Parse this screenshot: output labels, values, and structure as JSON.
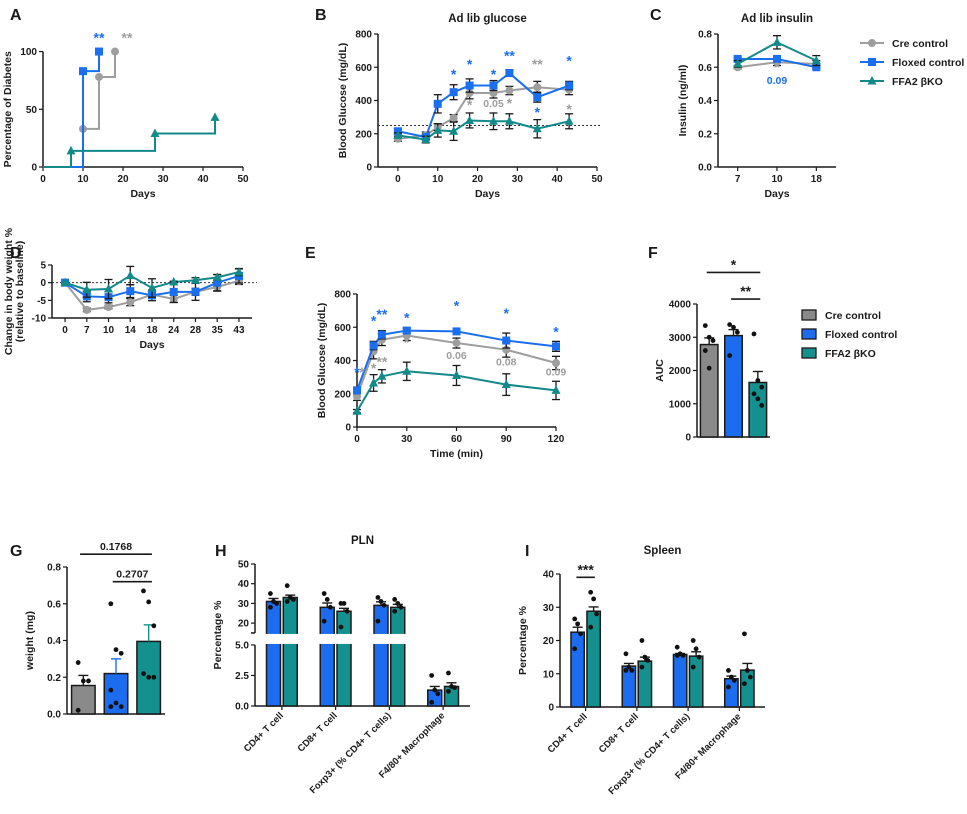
{
  "colors": {
    "cre": "#9e9e9e",
    "floxed": "#1a6ff0",
    "ko": "#138a8a",
    "black": "#1a1a1a",
    "bar_cre": "#8a8a8a",
    "bar_floxed": "#1c6cf0",
    "bar_ko": "#14918e"
  },
  "legend_lines": [
    {
      "label": "Cre control",
      "key": "cre",
      "marker": "circle"
    },
    {
      "label": "Floxed control",
      "key": "floxed",
      "marker": "square"
    },
    {
      "label": "FFA2 βKO",
      "key": "ko",
      "marker": "triangle"
    }
  ],
  "legend_bars": [
    {
      "label": "Cre control",
      "key": "bar_cre"
    },
    {
      "label": "Floxed control",
      "key": "bar_floxed"
    },
    {
      "label": "FFA2 βKO",
      "key": "bar_ko"
    }
  ],
  "chart_data": [
    {
      "panel": "A",
      "type": "line",
      "step": true,
      "title": "",
      "xlabel": "Days",
      "ylabel": "Percentage of Diabetes",
      "xlim": [
        0,
        50
      ],
      "ylim": [
        0,
        110
      ],
      "xticks": [
        0,
        10,
        20,
        30,
        40,
        50
      ],
      "yticks": [
        0,
        50,
        100
      ],
      "series": [
        {
          "name": "Cre control",
          "key": "cre",
          "marker": "circle",
          "x": [
            0,
            10,
            14,
            18
          ],
          "y": [
            0,
            33,
            78,
            100
          ]
        },
        {
          "name": "Floxed control",
          "key": "floxed",
          "marker": "square",
          "x": [
            0,
            10,
            14
          ],
          "y": [
            0,
            83,
            100
          ]
        },
        {
          "name": "FFA2 βKO",
          "key": "ko",
          "marker": "triangle",
          "x": [
            0,
            7,
            28,
            43
          ],
          "y": [
            0,
            14,
            29,
            43
          ]
        }
      ],
      "annotations": [
        {
          "text": "**",
          "key": "floxed",
          "x": 14,
          "y": 108
        },
        {
          "text": "**",
          "key": "cre",
          "x": 21,
          "y": 108
        }
      ]
    },
    {
      "panel": "B",
      "type": "line",
      "title": "Ad lib glucose",
      "xlabel": "Days",
      "ylabel": "Blood Glucose (mg/dL)",
      "xlim": [
        -5,
        50
      ],
      "ylim": [
        0,
        800
      ],
      "xticks": [
        0,
        10,
        20,
        30,
        40,
        50
      ],
      "yticks": [
        0,
        200,
        400,
        600,
        800
      ],
      "hline": 250,
      "series": [
        {
          "name": "Cre control",
          "key": "cre",
          "marker": "circle",
          "x": [
            0,
            7,
            10,
            14,
            18,
            24,
            28,
            35,
            43
          ],
          "y": [
            170,
            190,
            240,
            295,
            445,
            445,
            460,
            480,
            465
          ],
          "err": [
            15,
            20,
            20,
            20,
            35,
            30,
            25,
            35,
            30
          ]
        },
        {
          "name": "Floxed control",
          "key": "floxed",
          "marker": "square",
          "x": [
            0,
            7,
            10,
            14,
            18,
            24,
            28,
            35,
            43
          ],
          "y": [
            215,
            180,
            380,
            450,
            490,
            490,
            565,
            420,
            490
          ],
          "err": [
            15,
            15,
            55,
            45,
            40,
            30,
            20,
            30,
            25
          ]
        },
        {
          "name": "FFA2 βKO",
          "key": "ko",
          "marker": "triangle",
          "x": [
            0,
            7,
            10,
            14,
            18,
            24,
            28,
            35,
            43
          ],
          "y": [
            190,
            165,
            220,
            215,
            280,
            275,
            275,
            230,
            275
          ],
          "err": [
            15,
            20,
            40,
            55,
            45,
            50,
            45,
            55,
            45
          ]
        }
      ],
      "annotations": [
        {
          "text": "*",
          "key": "floxed",
          "x": 14,
          "y": 530
        },
        {
          "text": "*",
          "key": "floxed",
          "x": 18,
          "y": 590
        },
        {
          "text": "*",
          "key": "floxed",
          "x": 24,
          "y": 530
        },
        {
          "text": "**",
          "key": "floxed",
          "x": 28,
          "y": 640
        },
        {
          "text": "**",
          "key": "cre",
          "x": 35,
          "y": 590
        },
        {
          "text": "*",
          "key": "floxed",
          "x": 43,
          "y": 610
        },
        {
          "text": "*",
          "key": "cre",
          "x": 18,
          "y": 345
        },
        {
          "text": "0.05",
          "key": "cre",
          "x": 24,
          "y": 360
        },
        {
          "text": "*",
          "key": "cre",
          "x": 28,
          "y": 355
        },
        {
          "text": "*",
          "key": "floxed",
          "x": 35,
          "y": 300
        },
        {
          "text": "*",
          "key": "cre",
          "x": 43,
          "y": 320
        }
      ]
    },
    {
      "panel": "C",
      "type": "line",
      "title": "Ad lib insulin",
      "xlabel": "Days",
      "ylabel": "Insulin (ng/ml)",
      "categories": [
        "7",
        "10",
        "18"
      ],
      "ylim": [
        0,
        0.8
      ],
      "yticks": [
        0.0,
        0.2,
        0.4,
        0.6,
        0.8
      ],
      "series": [
        {
          "name": "Cre control",
          "key": "cre",
          "marker": "circle",
          "y": [
            0.6,
            0.63,
            0.62
          ],
          "err": [
            0.01,
            0.02,
            0.02
          ]
        },
        {
          "name": "Floxed control",
          "key": "floxed",
          "marker": "square",
          "y": [
            0.65,
            0.65,
            0.6
          ],
          "err": [
            0.01,
            0.02,
            0.01
          ]
        },
        {
          "name": "FFA2 βKO",
          "key": "ko",
          "marker": "triangle",
          "y": [
            0.62,
            0.75,
            0.64
          ],
          "err": [
            0.02,
            0.04,
            0.03
          ]
        }
      ],
      "annotations": [
        {
          "text": "*",
          "key": "cre",
          "x": 1,
          "y": 0.57
        },
        {
          "text": "0.09",
          "key": "floxed",
          "x": 1,
          "y": 0.5
        }
      ]
    },
    {
      "panel": "D",
      "type": "line",
      "title": "",
      "xlabel": "Days",
      "ylabel": "Change in body weight % (relative to baseline)",
      "categories": [
        "0",
        "7",
        "10",
        "14",
        "18",
        "24",
        "28",
        "35",
        "43"
      ],
      "ylim": [
        -10,
        5
      ],
      "yticks": [
        -10,
        -5,
        0,
        5
      ],
      "hline": 0,
      "series": [
        {
          "name": "Cre control",
          "key": "cre",
          "marker": "circle",
          "y": [
            0,
            -7.7,
            -6.9,
            -5.5,
            -3.4,
            -4.6,
            -2.6,
            -1.2,
            0.5
          ],
          "err": [
            0,
            0.5,
            0.5,
            1.0,
            1.0,
            1.0,
            1.0,
            1.2,
            1.0
          ]
        },
        {
          "name": "Floxed control",
          "key": "floxed",
          "marker": "square",
          "y": [
            0,
            -3.9,
            -4.1,
            -2.4,
            -3.6,
            -2.6,
            -2.6,
            0,
            1.9
          ],
          "err": [
            0,
            1.5,
            1.6,
            1.8,
            1.5,
            3.0,
            2.4,
            2.3,
            2.0
          ]
        },
        {
          "name": "FFA2 βKO",
          "key": "ko",
          "marker": "triangle",
          "y": [
            0,
            -2.0,
            -1.8,
            2.0,
            -1.5,
            0.2,
            0.7,
            1.5,
            3.0
          ],
          "err": [
            0,
            2.1,
            2.7,
            2.6,
            2.6,
            0.2,
            0.7,
            0.8,
            1.0
          ]
        }
      ]
    },
    {
      "panel": "E",
      "type": "line",
      "title": "",
      "xlabel": "Time (min)",
      "ylabel": "Blood Glucose (mg/dL)",
      "xlim": [
        0,
        120
      ],
      "ylim": [
        0,
        800
      ],
      "xticks": [
        0,
        30,
        60,
        90,
        120
      ],
      "yticks": [
        0,
        200,
        400,
        600,
        800
      ],
      "series": [
        {
          "name": "Cre control",
          "key": "cre",
          "marker": "circle",
          "x": [
            0,
            10,
            15,
            30,
            60,
            90,
            120
          ],
          "y": [
            185,
            455,
            525,
            550,
            505,
            465,
            385
          ],
          "err": [
            25,
            45,
            35,
            30,
            30,
            45,
            40
          ]
        },
        {
          "name": "Floxed control",
          "key": "floxed",
          "marker": "square",
          "x": [
            0,
            10,
            15,
            30,
            60,
            90,
            120
          ],
          "y": [
            220,
            490,
            555,
            580,
            575,
            520,
            485
          ],
          "err": [
            20,
            25,
            25,
            15,
            10,
            45,
            30
          ]
        },
        {
          "name": "FFA2 βKO",
          "key": "ko",
          "marker": "triangle",
          "x": [
            0,
            10,
            15,
            30,
            60,
            90,
            120
          ],
          "y": [
            95,
            265,
            305,
            335,
            310,
            255,
            220
          ],
          "err": [
            10,
            50,
            40,
            55,
            60,
            65,
            55
          ]
        }
      ],
      "annotations": [
        {
          "text": "*",
          "key": "floxed",
          "x": 0,
          "y": 300
        },
        {
          "text": "*",
          "key": "cre",
          "x": 3,
          "y": 300
        },
        {
          "text": "*",
          "key": "floxed",
          "x": 10,
          "y": 610
        },
        {
          "text": "**",
          "key": "floxed",
          "x": 15,
          "y": 650
        },
        {
          "text": "*",
          "key": "cre",
          "x": 10,
          "y": 325
        },
        {
          "text": "**",
          "key": "cre",
          "x": 15,
          "y": 365
        },
        {
          "text": "*",
          "key": "floxed",
          "x": 30,
          "y": 630
        },
        {
          "text": "*",
          "key": "cre",
          "x": 30,
          "y": 480
        },
        {
          "text": "*",
          "key": "floxed",
          "x": 60,
          "y": 700
        },
        {
          "text": "0.06",
          "key": "cre",
          "x": 60,
          "y": 410
        },
        {
          "text": "*",
          "key": "floxed",
          "x": 90,
          "y": 655
        },
        {
          "text": "0.08",
          "key": "cre",
          "x": 90,
          "y": 370
        },
        {
          "text": "*",
          "key": "floxed",
          "x": 120,
          "y": 545
        },
        {
          "text": "0.09",
          "key": "cre",
          "x": 120,
          "y": 310
        }
      ]
    },
    {
      "panel": "F",
      "type": "bar",
      "title": "",
      "xlabel": "",
      "ylabel": "AUC",
      "categories": [
        "Cre control",
        "Floxed control",
        "FFA2 βKO"
      ],
      "keys": [
        "bar_cre",
        "bar_floxed",
        "bar_ko"
      ],
      "values": [
        2780,
        3050,
        1640
      ],
      "err": [
        200,
        180,
        330
      ],
      "points": [
        [
          3350,
          3000,
          2900,
          2600,
          2070
        ],
        [
          3380,
          3300,
          3150,
          2450
        ],
        [
          3100,
          1700,
          1500,
          1300,
          1150,
          950
        ]
      ],
      "ylim": [
        0,
        4000
      ],
      "yticks": [
        0,
        1000,
        2000,
        3000,
        4000
      ],
      "brackets": [
        {
          "from": 0,
          "to": 2,
          "text": "*",
          "level": 4950
        },
        {
          "from": 1,
          "to": 2,
          "text": "**",
          "level": 4150
        }
      ]
    },
    {
      "panel": "G",
      "type": "bar",
      "title": "",
      "xlabel": "",
      "ylabel": "weight (mg)",
      "categories": [
        "Cre control",
        "Floxed control",
        "FFA2 βKO"
      ],
      "keys": [
        "bar_cre",
        "bar_floxed",
        "bar_ko"
      ],
      "values": [
        0.155,
        0.22,
        0.395
      ],
      "err": [
        0.055,
        0.08,
        0.09
      ],
      "points": [
        [
          0.28,
          0.18,
          0.18,
          0.02
        ],
        [
          0.6,
          0.35,
          0.33,
          0.13,
          0.06,
          0.04,
          0.04
        ],
        [
          0.67,
          0.61,
          0.48,
          0.22,
          0.2,
          0.2
        ]
      ],
      "ylim": [
        0,
        0.8
      ],
      "yticks": [
        0.0,
        0.2,
        0.4,
        0.6,
        0.8
      ],
      "brackets": [
        {
          "from": 0,
          "to": 2,
          "text": "0.1768",
          "level": 0.87
        },
        {
          "from": 1,
          "to": 2,
          "text": "0.2707",
          "level": 0.72
        }
      ]
    },
    {
      "panel": "H",
      "type": "bar",
      "title": "PLN",
      "xlabel": "",
      "ylabel": "Percentage %",
      "categories": [
        "CD4+ T cell",
        "CD8+ T cell",
        "Foxp3+ (% CD4+ T cells)",
        "F4/80+ Macrophage"
      ],
      "series": [
        {
          "name": "Floxed control",
          "key": "bar_floxed",
          "values": [
            31,
            28,
            29,
            1.3
          ],
          "err": [
            1.5,
            2.2,
            1.8,
            0.3
          ],
          "points": [
            [
              35,
              31,
              30,
              28
            ],
            [
              35,
              32,
              28,
              21
            ],
            [
              33,
              31,
              29,
              21
            ],
            [
              2.5,
              1.3,
              1.0,
              0.3
            ]
          ]
        },
        {
          "name": "FFA2 βKO",
          "key": "bar_ko",
          "values": [
            33,
            26,
            28,
            1.6
          ],
          "err": [
            1.2,
            1.5,
            1.5,
            0.3
          ],
          "points": [
            [
              39,
              33,
              32,
              31
            ],
            [
              30,
              30,
              26,
              18
            ],
            [
              32,
              30,
              28,
              26
            ],
            [
              2.7,
              1.6,
              1.5,
              1.2
            ]
          ]
        }
      ],
      "axis_break": {
        "lower": [
          0,
          5
        ],
        "upper": [
          15,
          50
        ]
      },
      "yticks_lower": [
        0.0,
        2.5,
        5.0
      ],
      "yticks_upper": [
        20,
        30,
        40,
        50
      ]
    },
    {
      "panel": "I",
      "type": "bar",
      "title": "Spleen",
      "xlabel": "",
      "ylabel": "Percentage %",
      "categories": [
        "CD4+ T cell",
        "CD8+ T cell",
        "Foxp3+ (% CD4+ T cells)",
        "F4/80+ Macrophage"
      ],
      "series": [
        {
          "name": "Floxed control",
          "key": "bar_floxed",
          "values": [
            22.5,
            12.3,
            15.8,
            8.5
          ],
          "err": [
            1.5,
            0.8,
            0.3,
            0.8
          ],
          "points": [
            [
              26.5,
              25,
              22,
              17.5
            ],
            [
              16,
              12,
              11,
              11
            ],
            [
              18,
              16,
              15.5,
              15.5
            ],
            [
              11,
              9,
              8,
              6
            ]
          ]
        },
        {
          "name": "FFA2 βKO",
          "key": "bar_ko",
          "values": [
            28.8,
            13.8,
            15.3,
            11.1
          ],
          "err": [
            1.3,
            1.2,
            1.3,
            2.0
          ],
          "points": [
            [
              34.5,
              32.5,
              28,
              24
            ],
            [
              20,
              15,
              14,
              12
            ],
            [
              20,
              17.5,
              15,
              12
            ],
            [
              22,
              11,
              9,
              7
            ]
          ]
        }
      ],
      "ylim": [
        0,
        40
      ],
      "yticks": [
        0,
        10,
        20,
        30,
        40
      ],
      "brackets": [
        {
          "from": 0,
          "to": 0,
          "text": "***",
          "level": 39
        }
      ]
    }
  ],
  "panel_labels": [
    "A",
    "B",
    "C",
    "D",
    "E",
    "F",
    "G",
    "H",
    "I"
  ]
}
